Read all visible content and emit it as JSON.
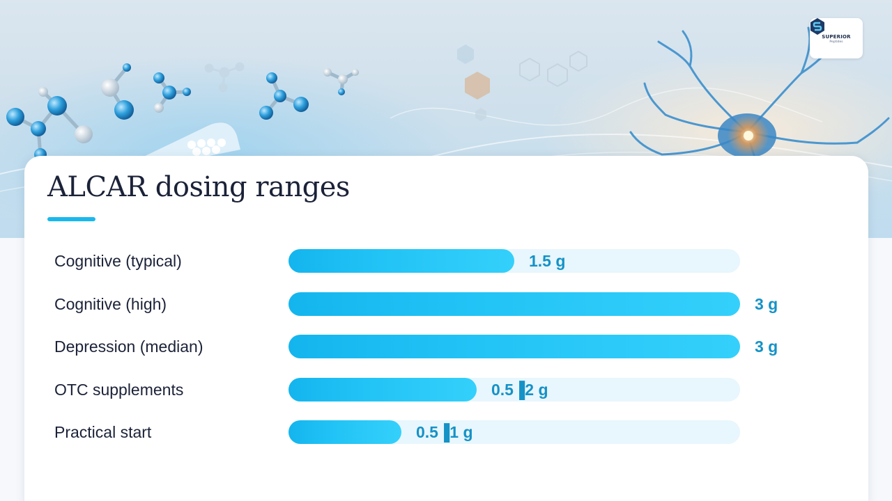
{
  "logo": {
    "name": "SUPERIOR",
    "sub": "Peptides"
  },
  "chart_data": {
    "type": "bar",
    "orientation": "horizontal",
    "title": "ALCAR dosing ranges",
    "unit": "g",
    "xlim": [
      0,
      3
    ],
    "grid": false,
    "categories": [
      "Cognitive (typical)",
      "Cognitive (high)",
      "Depression (median)",
      "OTC supplements",
      "Practical start"
    ],
    "values": [
      1.5,
      3,
      3,
      1.25,
      0.75
    ],
    "value_labels": [
      "1.5 g",
      "3 g",
      "3 g",
      "0.5▐2 g",
      "0.5▐1 g"
    ],
    "colors": {
      "bar": "#20c2f5",
      "track": "#e8f6fd",
      "label": "#1592c6"
    }
  }
}
